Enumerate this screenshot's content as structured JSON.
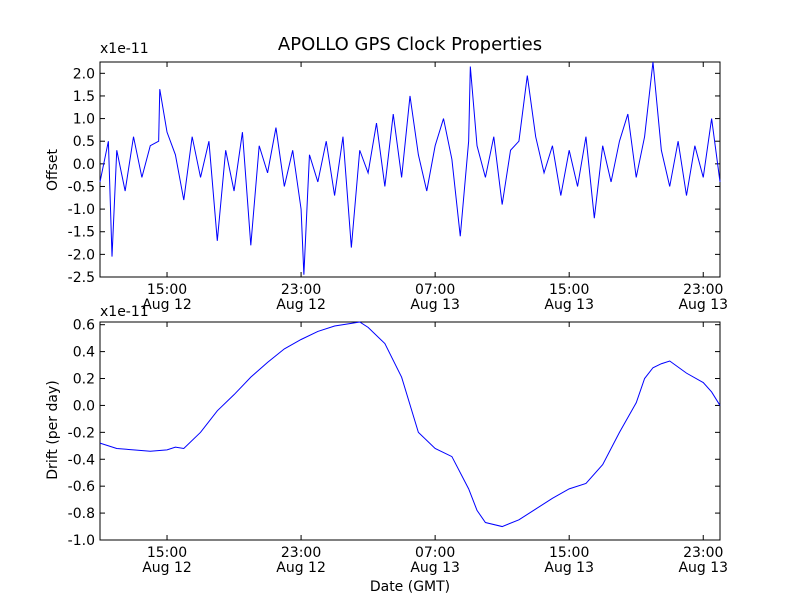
{
  "chart_data": [
    {
      "type": "line",
      "title": "APOLLO GPS Clock Properties",
      "ylabel": "Offset",
      "y_multiplier": "x1e-11",
      "ylim": [
        -2.5,
        2.25
      ],
      "xlim": [
        "Aug 12 11:00",
        "Aug 14 00:00"
      ],
      "yticks": [
        "-2.5",
        "-2.0",
        "-1.5",
        "-1.0",
        "-0.5",
        "0.0",
        "0.5",
        "1.0",
        "1.5",
        "2.0"
      ],
      "xticks": [
        {
          "time": "15:00",
          "date": "Aug 12"
        },
        {
          "time": "23:00",
          "date": "Aug 12"
        },
        {
          "time": "07:00",
          "date": "Aug 13"
        },
        {
          "time": "15:00",
          "date": "Aug 13"
        },
        {
          "time": "23:00",
          "date": "Aug 13"
        }
      ],
      "line_color": "#0000ff",
      "series": [
        {
          "x": [
            "Aug 12 11:00",
            "Aug 12 11:30",
            "Aug 12 11:43",
            "Aug 12 12:00",
            "Aug 12 12:30",
            "Aug 12 13:00",
            "Aug 12 13:30",
            "Aug 12 14:00",
            "Aug 12 14:30",
            "Aug 12 14:34",
            "Aug 12 15:00",
            "Aug 12 15:30",
            "Aug 12 16:00",
            "Aug 12 16:30",
            "Aug 12 17:00",
            "Aug 12 17:30",
            "Aug 12 18:00",
            "Aug 12 18:30",
            "Aug 12 19:00",
            "Aug 12 19:30",
            "Aug 12 20:00",
            "Aug 12 20:30",
            "Aug 12 21:00",
            "Aug 12 21:30",
            "Aug 12 22:00",
            "Aug 12 22:30",
            "Aug 12 23:00",
            "Aug 12 23:10",
            "Aug 12 23:30",
            "Aug 13 00:00",
            "Aug 13 00:30",
            "Aug 13 01:00",
            "Aug 13 01:30",
            "Aug 13 02:00",
            "Aug 13 02:30",
            "Aug 13 03:00",
            "Aug 13 03:30",
            "Aug 13 04:00",
            "Aug 13 04:30",
            "Aug 13 05:00",
            "Aug 13 05:30",
            "Aug 13 06:00",
            "Aug 13 06:30",
            "Aug 13 07:00",
            "Aug 13 07:30",
            "Aug 13 08:00",
            "Aug 13 08:30",
            "Aug 13 09:00",
            "Aug 13 09:06",
            "Aug 13 09:30",
            "Aug 13 10:00",
            "Aug 13 10:30",
            "Aug 13 11:00",
            "Aug 13 11:30",
            "Aug 13 12:00",
            "Aug 13 12:30",
            "Aug 13 13:00",
            "Aug 13 13:30",
            "Aug 13 14:00",
            "Aug 13 14:30",
            "Aug 13 15:00",
            "Aug 13 15:30",
            "Aug 13 16:00",
            "Aug 13 16:30",
            "Aug 13 17:00",
            "Aug 13 17:30",
            "Aug 13 18:00",
            "Aug 13 18:30",
            "Aug 13 19:00",
            "Aug 13 19:30",
            "Aug 13 20:00",
            "Aug 13 20:30",
            "Aug 13 21:00",
            "Aug 13 21:30",
            "Aug 13 22:00",
            "Aug 13 22:30",
            "Aug 13 23:00",
            "Aug 13 23:30",
            "Aug 14 00:00"
          ],
          "y": [
            -0.4,
            0.5,
            -2.05,
            0.3,
            -0.6,
            0.6,
            -0.3,
            0.4,
            0.5,
            1.65,
            0.7,
            0.2,
            -0.8,
            0.6,
            -0.3,
            0.5,
            -1.7,
            0.3,
            -0.6,
            0.7,
            -1.8,
            0.4,
            -0.2,
            0.8,
            -0.5,
            0.3,
            -1.0,
            -2.45,
            0.2,
            -0.4,
            0.5,
            -0.7,
            0.6,
            -1.85,
            0.3,
            -0.2,
            0.9,
            -0.5,
            1.1,
            -0.3,
            1.5,
            0.2,
            -0.6,
            0.4,
            1.0,
            0.1,
            -1.6,
            0.5,
            2.15,
            0.4,
            -0.3,
            0.6,
            -0.9,
            0.3,
            0.5,
            1.95,
            0.6,
            -0.2,
            0.4,
            -0.7,
            0.3,
            -0.5,
            0.6,
            -1.2,
            0.4,
            -0.4,
            0.5,
            1.1,
            -0.3,
            0.6,
            2.25,
            0.3,
            -0.5,
            0.5,
            -0.7,
            0.4,
            -0.3,
            1.0,
            -0.4
          ]
        }
      ]
    },
    {
      "type": "line",
      "xlabel": "Date (GMT)",
      "ylabel": "Drift (per day)",
      "y_multiplier": "x1e-11",
      "ylim": [
        -1.0,
        0.62
      ],
      "xlim": [
        "Aug 12 11:00",
        "Aug 14 00:00"
      ],
      "yticks": [
        "-1.0",
        "-0.8",
        "-0.6",
        "-0.4",
        "-0.2",
        "0.0",
        "0.2",
        "0.4",
        "0.6"
      ],
      "xticks": [
        {
          "time": "15:00",
          "date": "Aug 12"
        },
        {
          "time": "23:00",
          "date": "Aug 12"
        },
        {
          "time": "07:00",
          "date": "Aug 13"
        },
        {
          "time": "15:00",
          "date": "Aug 13"
        },
        {
          "time": "23:00",
          "date": "Aug 13"
        }
      ],
      "line_color": "#0000ff",
      "series": [
        {
          "x": [
            "Aug 12 11:00",
            "Aug 12 12:00",
            "Aug 12 13:00",
            "Aug 12 14:00",
            "Aug 12 15:00",
            "Aug 12 15:30",
            "Aug 12 16:00",
            "Aug 12 17:00",
            "Aug 12 18:00",
            "Aug 12 19:00",
            "Aug 12 20:00",
            "Aug 12 21:00",
            "Aug 12 22:00",
            "Aug 12 23:00",
            "Aug 13 00:00",
            "Aug 13 01:00",
            "Aug 13 02:00",
            "Aug 13 02:30",
            "Aug 13 03:00",
            "Aug 13 04:00",
            "Aug 13 05:00",
            "Aug 13 06:00",
            "Aug 13 07:00",
            "Aug 13 08:00",
            "Aug 13 09:00",
            "Aug 13 09:30",
            "Aug 13 10:00",
            "Aug 13 11:00",
            "Aug 13 12:00",
            "Aug 13 13:00",
            "Aug 13 14:00",
            "Aug 13 15:00",
            "Aug 13 16:00",
            "Aug 13 17:00",
            "Aug 13 18:00",
            "Aug 13 19:00",
            "Aug 13 19:30",
            "Aug 13 20:00",
            "Aug 13 20:30",
            "Aug 13 21:00",
            "Aug 13 22:00",
            "Aug 13 23:00",
            "Aug 13 23:30",
            "Aug 14 00:00"
          ],
          "y": [
            -0.28,
            -0.32,
            -0.33,
            -0.34,
            -0.33,
            -0.31,
            -0.32,
            -0.2,
            -0.04,
            0.08,
            0.21,
            0.32,
            0.42,
            0.49,
            0.55,
            0.59,
            0.61,
            0.62,
            0.58,
            0.46,
            0.21,
            -0.2,
            -0.32,
            -0.38,
            -0.62,
            -0.78,
            -0.87,
            -0.9,
            -0.85,
            -0.77,
            -0.69,
            -0.62,
            -0.58,
            -0.44,
            -0.2,
            0.02,
            0.2,
            0.28,
            0.31,
            0.33,
            0.24,
            0.17,
            0.1,
            0.0
          ]
        }
      ]
    }
  ]
}
